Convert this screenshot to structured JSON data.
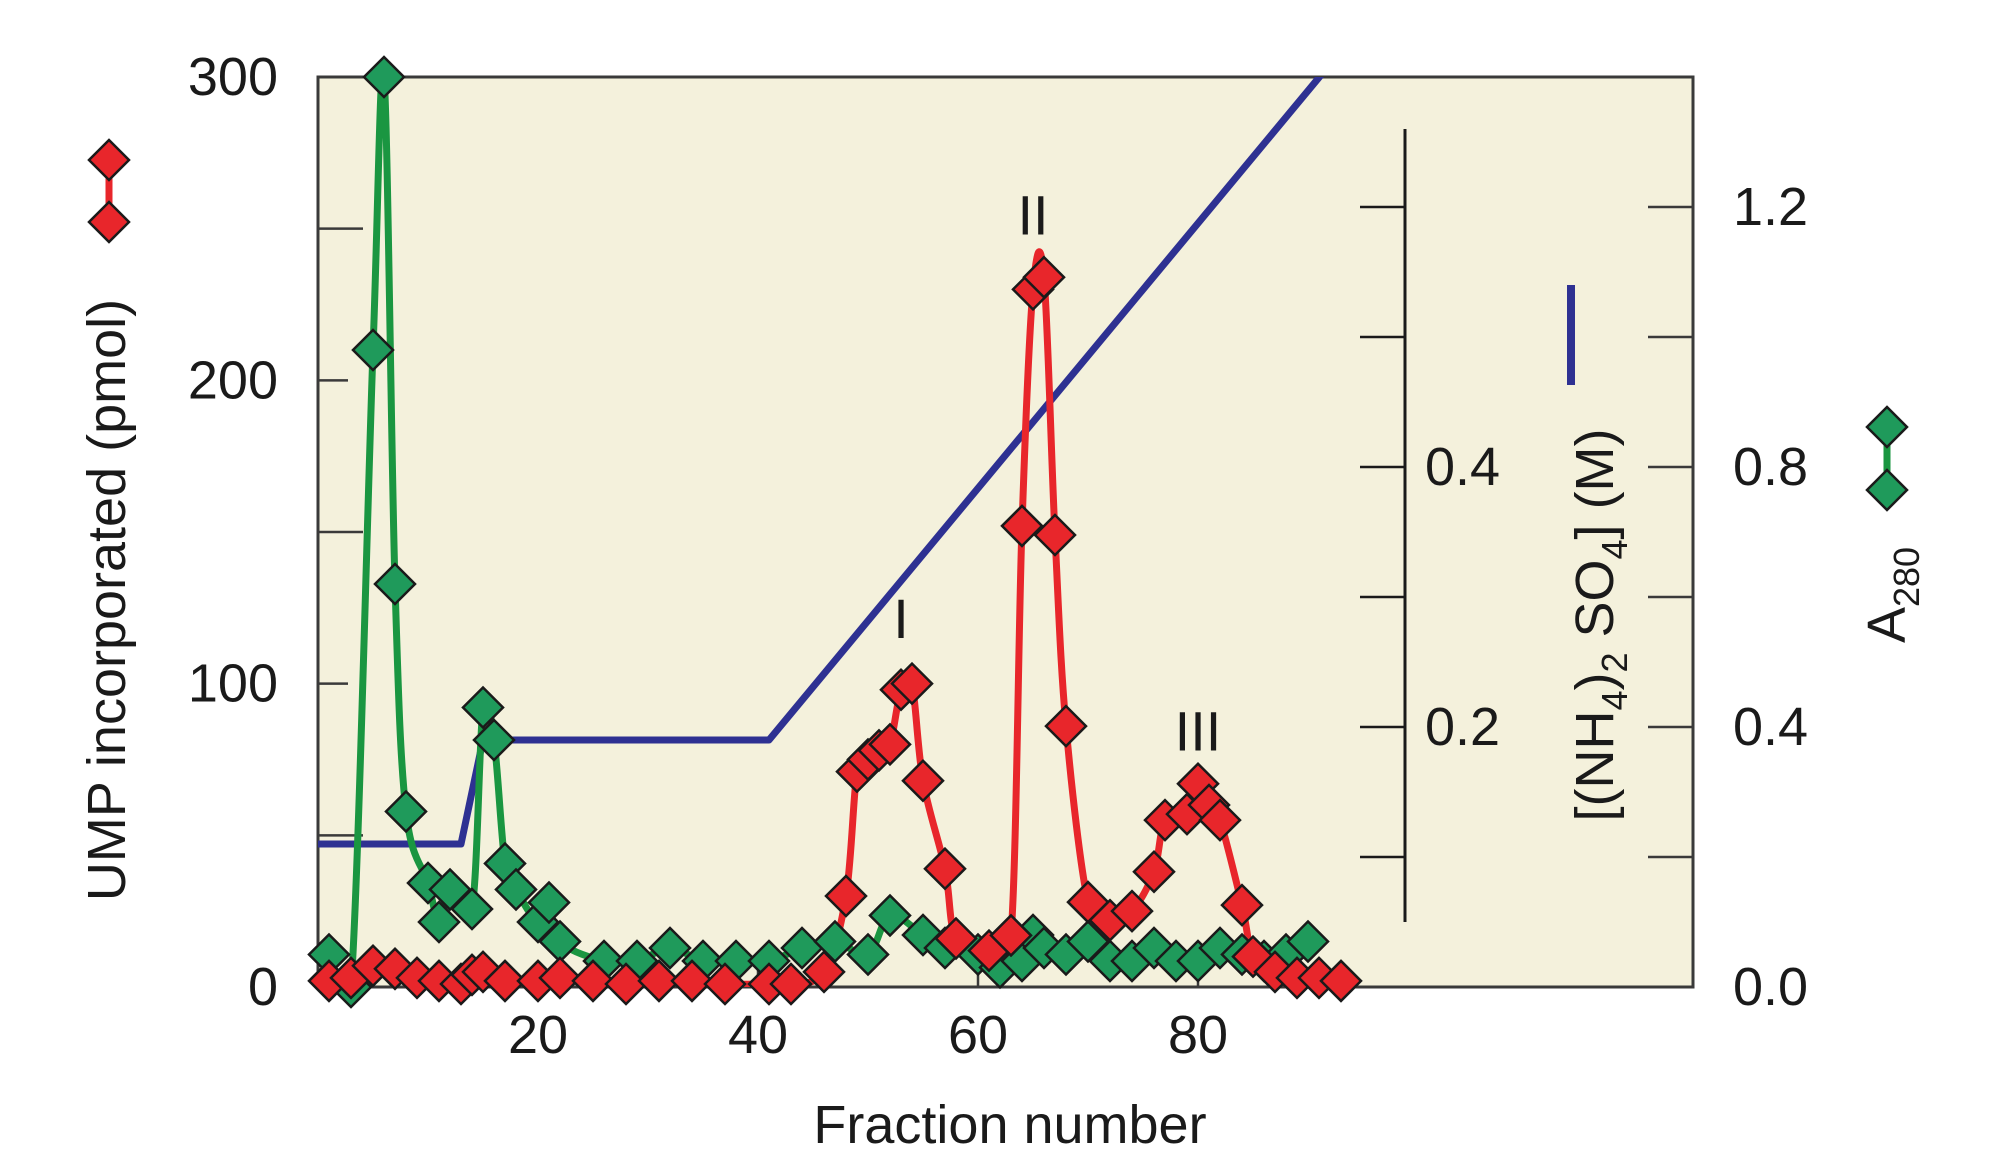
{
  "chart_data": {
    "type": "line",
    "title": "",
    "xlabel": "Fraction number",
    "xlim": [
      0,
      125
    ],
    "x_ticks": [
      20,
      40,
      60,
      80
    ],
    "left_axis": {
      "label": "UMP incorporated (pmol)",
      "range": [
        0,
        300
      ],
      "ticks": [
        0,
        100,
        200,
        300
      ]
    },
    "salt_axis": {
      "label_parts": [
        "[(NH",
        "4",
        ")",
        "2",
        " SO",
        "4",
        "] (M)"
      ],
      "range": [
        0,
        0.7
      ],
      "ticks": [
        0.2,
        0.4
      ]
    },
    "right_axis": {
      "label": "A",
      "label_subscript": "280",
      "range": [
        0,
        1.4
      ],
      "ticks": [
        "0.0",
        "0.4",
        "0.8",
        "1.2"
      ]
    },
    "annotations": [
      {
        "text": "I",
        "x": 53,
        "y": 115
      },
      {
        "text": "II",
        "x": 65,
        "y": 248
      },
      {
        "text": "III",
        "x": 80,
        "y": 78
      }
    ],
    "series": [
      {
        "id": "ump",
        "axis": "left",
        "color": "#e8262b",
        "points": [
          [
            1,
            2
          ],
          [
            3,
            3
          ],
          [
            5,
            7
          ],
          [
            7,
            6
          ],
          [
            9,
            3
          ],
          [
            11,
            2
          ],
          [
            13,
            1
          ],
          [
            14,
            4
          ],
          [
            15,
            5
          ],
          [
            17,
            2
          ],
          [
            20,
            2
          ],
          [
            22,
            3
          ],
          [
            25,
            2
          ],
          [
            28,
            1
          ],
          [
            31,
            2
          ],
          [
            34,
            2
          ],
          [
            37,
            1
          ],
          [
            41,
            1
          ],
          [
            43,
            1
          ],
          [
            46,
            5
          ],
          [
            48,
            30
          ],
          [
            49,
            71
          ],
          [
            50,
            75
          ],
          [
            51,
            78
          ],
          [
            52,
            80
          ],
          [
            53,
            98
          ],
          [
            54,
            100
          ],
          [
            55,
            68
          ],
          [
            57,
            39
          ],
          [
            58,
            16
          ],
          [
            61,
            12
          ],
          [
            63,
            17
          ],
          [
            64,
            152
          ],
          [
            65,
            230
          ],
          [
            66,
            234
          ],
          [
            67,
            149
          ],
          [
            68,
            86
          ],
          [
            70,
            28
          ],
          [
            72,
            22
          ],
          [
            74,
            25
          ],
          [
            76,
            38
          ],
          [
            77,
            55
          ],
          [
            79,
            57
          ],
          [
            80,
            67
          ],
          [
            81,
            60
          ],
          [
            82,
            55
          ],
          [
            84,
            27
          ],
          [
            85,
            10
          ],
          [
            87,
            5
          ],
          [
            89,
            3
          ],
          [
            91,
            3
          ],
          [
            93,
            2
          ]
        ]
      },
      {
        "id": "a280",
        "axis": "right",
        "color": "#1a9641",
        "marker_color": "#1f9a5b",
        "points": [
          [
            1,
            0.05
          ],
          [
            3,
            0
          ],
          [
            5,
            0.98
          ],
          [
            6,
            1.4
          ],
          [
            7,
            0.62
          ],
          [
            8,
            0.27
          ],
          [
            10,
            0.16
          ],
          [
            11,
            0.1
          ],
          [
            12,
            0.15
          ],
          [
            14,
            0.12
          ],
          [
            15,
            0.43
          ],
          [
            16,
            0.38
          ],
          [
            17,
            0.19
          ],
          [
            18,
            0.15
          ],
          [
            20,
            0.1
          ],
          [
            21,
            0.13
          ],
          [
            22,
            0.07
          ],
          [
            26,
            0.04
          ],
          [
            29,
            0.04
          ],
          [
            32,
            0.06
          ],
          [
            35,
            0.04
          ],
          [
            38,
            0.04
          ],
          [
            41,
            0.04
          ],
          [
            44,
            0.06
          ],
          [
            47,
            0.07
          ],
          [
            50,
            0.05
          ],
          [
            52,
            0.11
          ],
          [
            55,
            0.08
          ],
          [
            57,
            0.06
          ],
          [
            60,
            0.05
          ],
          [
            62,
            0.03
          ],
          [
            64,
            0.04
          ],
          [
            65,
            0.08
          ],
          [
            66,
            0.06
          ],
          [
            68,
            0.05
          ],
          [
            70,
            0.07
          ],
          [
            72,
            0.04
          ],
          [
            74,
            0.04
          ],
          [
            76,
            0.06
          ],
          [
            78,
            0.04
          ],
          [
            80,
            0.04
          ],
          [
            82,
            0.06
          ],
          [
            84,
            0.05
          ],
          [
            86,
            0.04
          ],
          [
            88,
            0.05
          ],
          [
            90,
            0.07
          ]
        ]
      },
      {
        "id": "salt",
        "axis": "salt",
        "color": "#2e3192",
        "points": [
          [
            0,
            0.11
          ],
          [
            13,
            0.11
          ],
          [
            15,
            0.19
          ],
          [
            41,
            0.19
          ],
          [
            93,
            0.72
          ]
        ]
      }
    ]
  }
}
